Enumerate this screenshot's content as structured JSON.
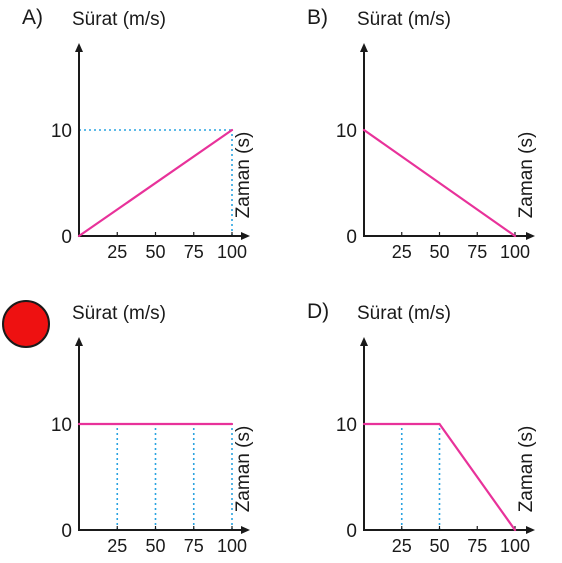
{
  "colors": {
    "line": "#e8329a",
    "guide": "#2aa3e0",
    "axis": "#1a1a1a",
    "marker_fill": "#ee1111",
    "marker_stroke": "#1a1a1a"
  },
  "chart_data": [
    {
      "option_label": "A)",
      "type": "line",
      "ylabel": "Sürat (m/s)",
      "xlabel": "Zaman (s)",
      "xticks": [
        "25",
        "50",
        "75",
        "100"
      ],
      "yticks": [
        "0",
        "10"
      ],
      "xlim": [
        0,
        100
      ],
      "ylim": [
        0,
        10
      ],
      "points": [
        [
          0,
          0
        ],
        [
          100,
          10
        ]
      ],
      "guides": [
        {
          "from": [
            0,
            10
          ],
          "to": [
            100,
            10
          ]
        },
        {
          "from": [
            100,
            0
          ],
          "to": [
            100,
            10
          ]
        }
      ]
    },
    {
      "option_label": "B)",
      "type": "line",
      "ylabel": "Sürat (m/s)",
      "xlabel": "Zaman (s)",
      "xticks": [
        "25",
        "50",
        "75",
        "100"
      ],
      "yticks": [
        "0",
        "10"
      ],
      "xlim": [
        0,
        100
      ],
      "ylim": [
        0,
        10
      ],
      "points": [
        [
          0,
          10
        ],
        [
          100,
          0
        ]
      ],
      "guides": []
    },
    {
      "option_label": "",
      "selected_marker": true,
      "type": "line",
      "ylabel": "Sürat (m/s)",
      "xlabel": "Zaman (s)",
      "xticks": [
        "25",
        "50",
        "75",
        "100"
      ],
      "yticks": [
        "0",
        "10"
      ],
      "xlim": [
        0,
        100
      ],
      "ylim": [
        0,
        10
      ],
      "points": [
        [
          0,
          10
        ],
        [
          100,
          10
        ]
      ],
      "guides": [
        {
          "from": [
            25,
            0
          ],
          "to": [
            25,
            10
          ]
        },
        {
          "from": [
            50,
            0
          ],
          "to": [
            50,
            10
          ]
        },
        {
          "from": [
            75,
            0
          ],
          "to": [
            75,
            10
          ]
        },
        {
          "from": [
            100,
            0
          ],
          "to": [
            100,
            10
          ]
        }
      ]
    },
    {
      "option_label": "D)",
      "type": "line",
      "ylabel": "Sürat (m/s)",
      "xlabel": "Zaman (s)",
      "xticks": [
        "25",
        "50",
        "75",
        "100"
      ],
      "yticks": [
        "0",
        "10"
      ],
      "xlim": [
        0,
        100
      ],
      "ylim": [
        0,
        10
      ],
      "points": [
        [
          0,
          10
        ],
        [
          50,
          10
        ],
        [
          100,
          0
        ]
      ],
      "guides": [
        {
          "from": [
            25,
            0
          ],
          "to": [
            25,
            10
          ]
        },
        {
          "from": [
            50,
            0
          ],
          "to": [
            50,
            10
          ]
        }
      ]
    }
  ]
}
